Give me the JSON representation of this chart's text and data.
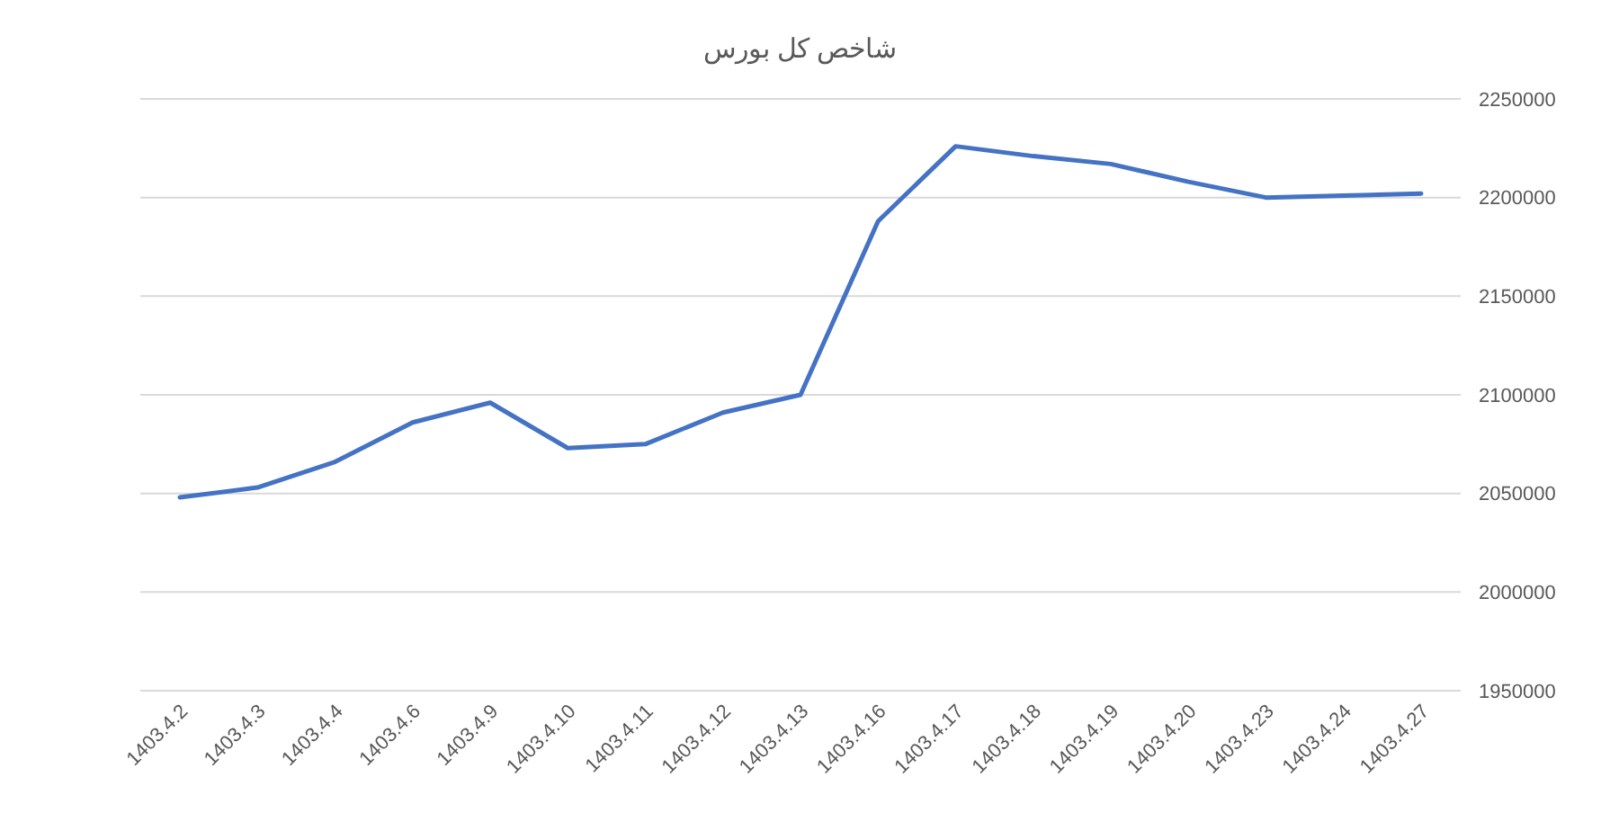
{
  "chart_data": {
    "type": "line",
    "title": "شاخص کل بورس",
    "categories": [
      "1403.4.2",
      "1403.4.3",
      "1403.4.4",
      "1403.4.6",
      "1403.4.9",
      "1403.4.10",
      "1403.4.11",
      "1403.4.12",
      "1403.4.13",
      "1403.4.16",
      "1403.4.17",
      "1403.4.18",
      "1403.4.19",
      "1403.4.20",
      "1403.4.23",
      "1403.4.24",
      "1403.4.27"
    ],
    "series": [
      {
        "color": "#4472c4",
        "values": [
          2048000,
          2053000,
          2066000,
          2086000,
          2096000,
          2073000,
          2075000,
          2091000,
          2100000,
          2188000,
          2226000,
          2221000,
          2217000,
          2208000,
          2200000,
          2201000,
          2202000
        ]
      }
    ],
    "ylim": [
      1950000,
      2250000
    ],
    "yticks": [
      1950000,
      2000000,
      2050000,
      2100000,
      2150000,
      2200000,
      2250000
    ],
    "grid": "y",
    "marker": "none",
    "line_style": "solid"
  }
}
